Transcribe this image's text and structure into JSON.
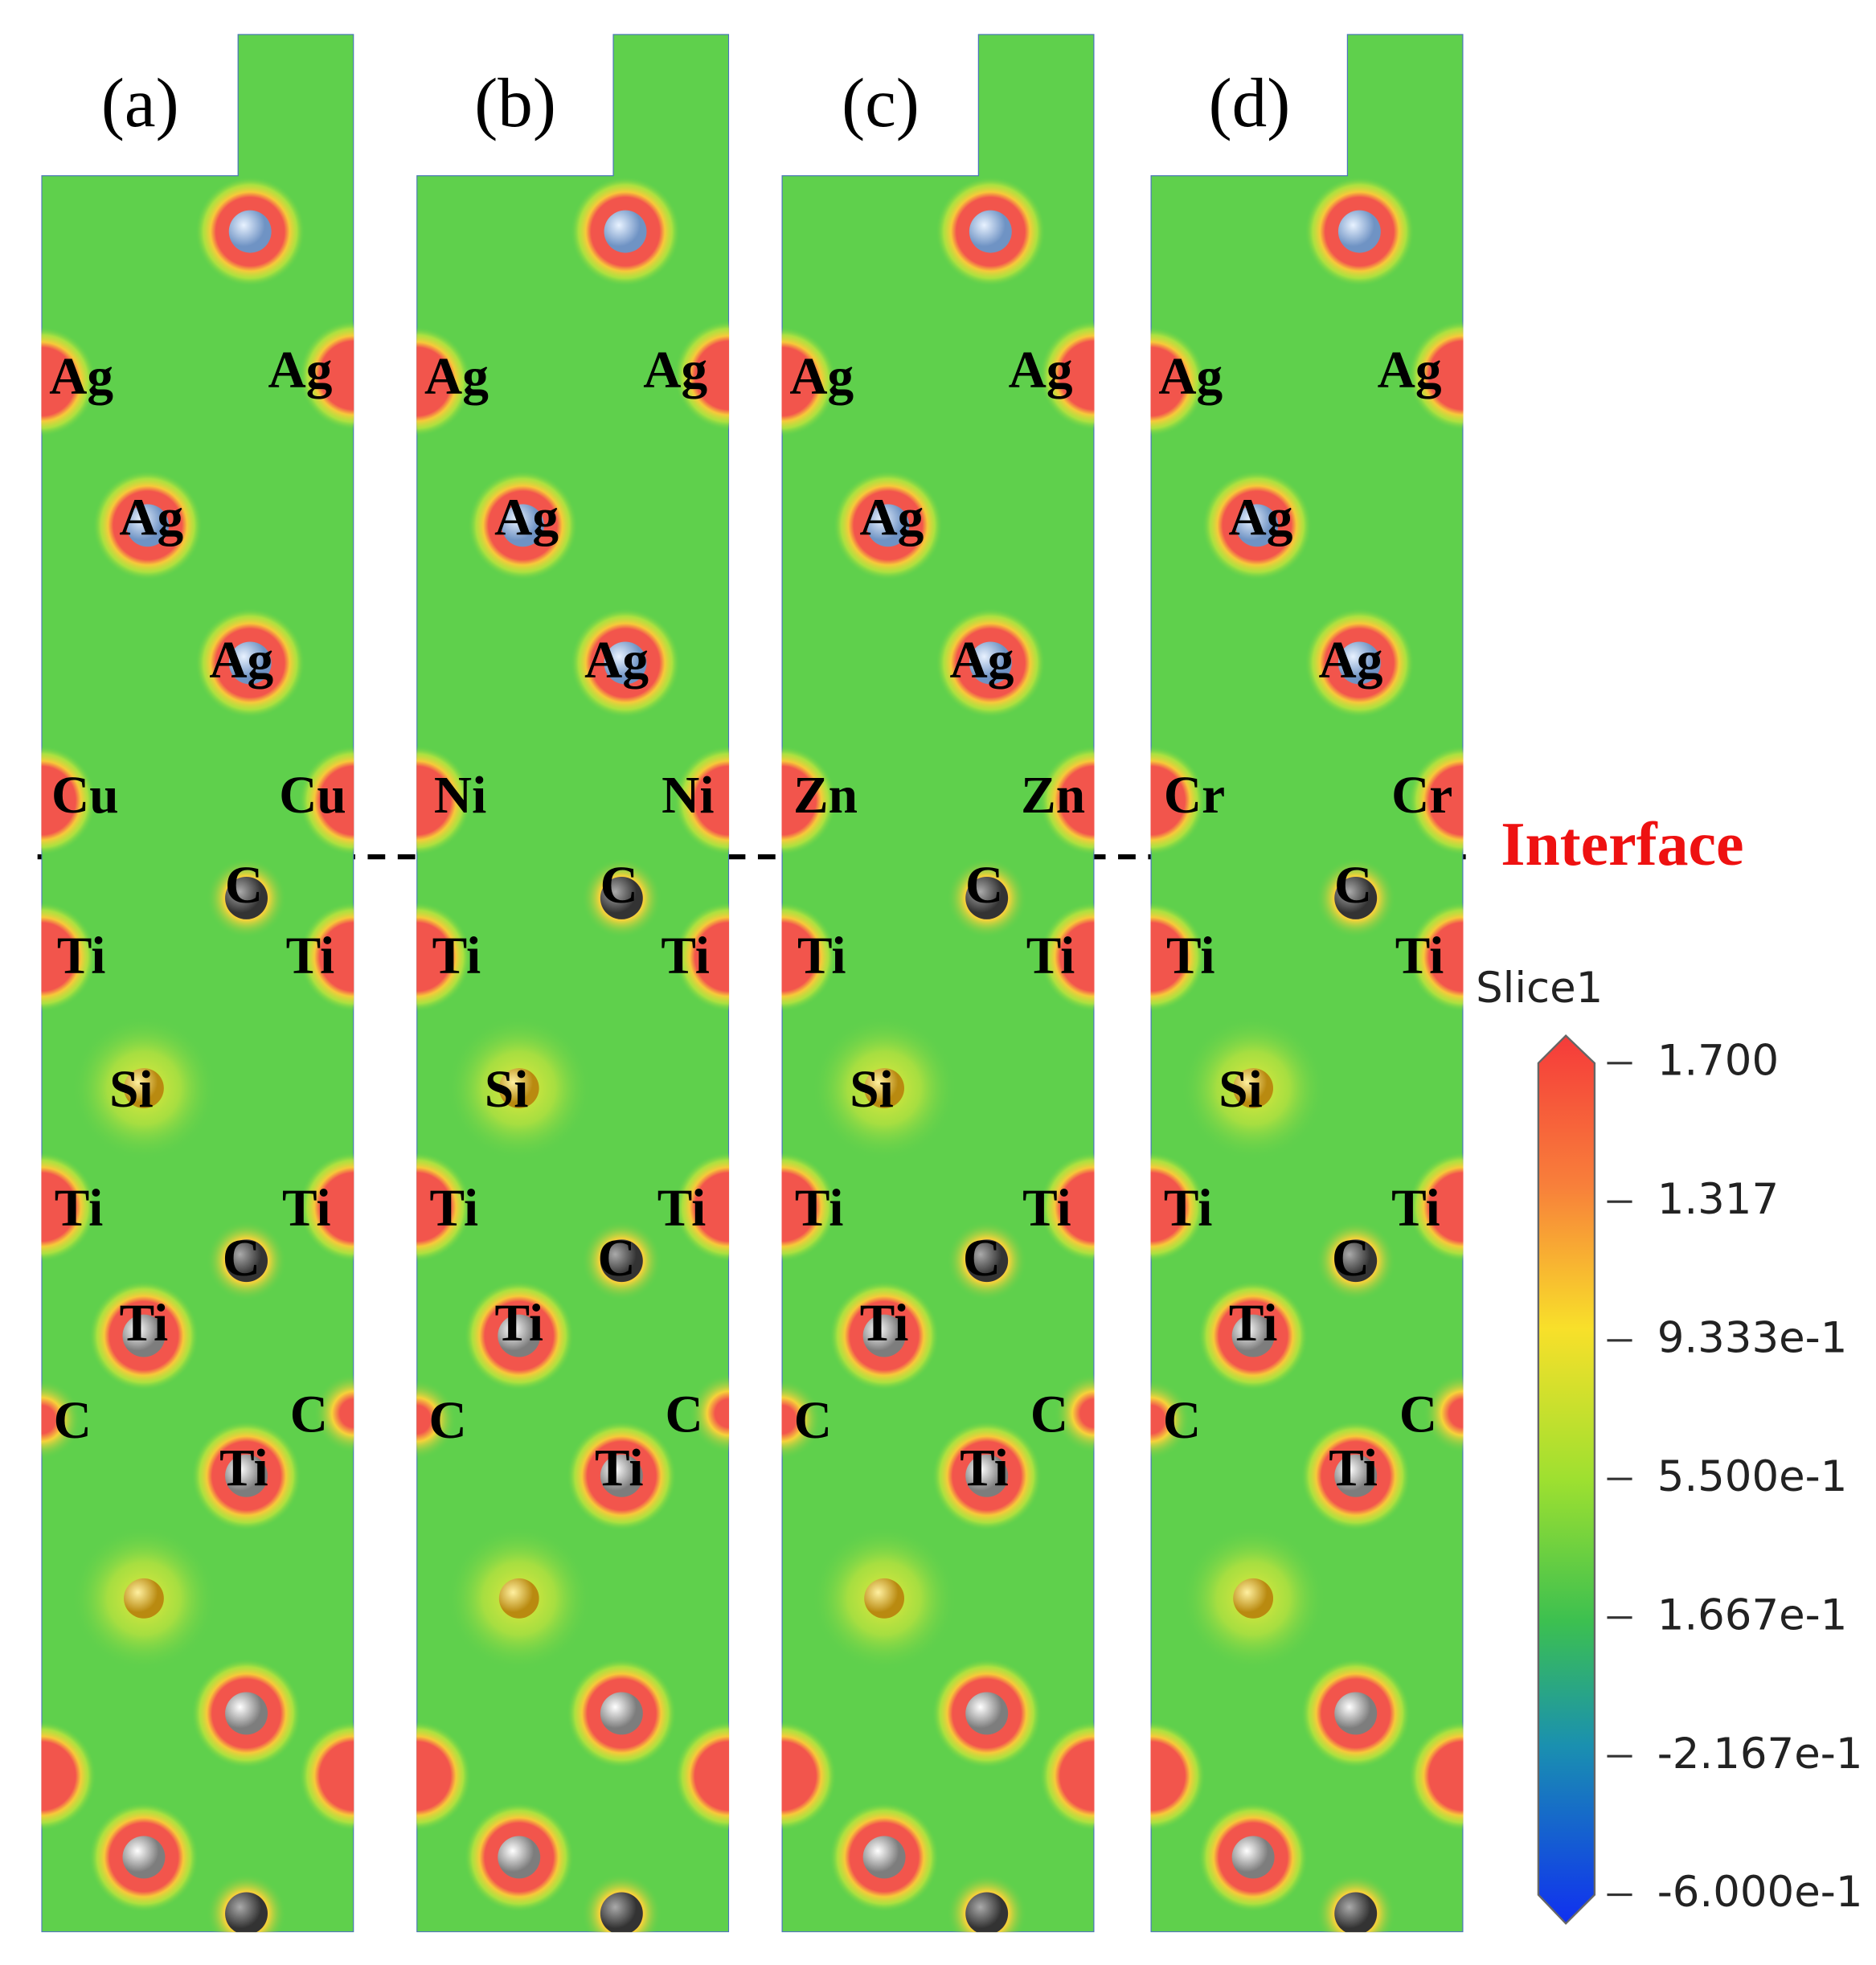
{
  "panels": [
    {
      "label": "(a)",
      "atoms": [
        "Ag",
        "Ag",
        "Ag",
        "Ag",
        "Cu",
        "Cu",
        "C",
        "Ti",
        "Ti",
        "Si",
        "Ti",
        "Ti",
        "C",
        "Ti",
        "C",
        "C",
        "Ti"
      ]
    },
    {
      "label": "(b)",
      "atoms": [
        "Ag",
        "Ag",
        "Ag",
        "Ag",
        "Ni",
        "Ni",
        "C",
        "Ti",
        "Ti",
        "Si",
        "Ti",
        "Ti",
        "C",
        "Ti",
        "C",
        "C",
        "Ti"
      ]
    },
    {
      "label": "(c)",
      "atoms": [
        "Ag",
        "Ag",
        "Ag",
        "Ag",
        "Zn",
        "Zn",
        "C",
        "Ti",
        "Ti",
        "Si",
        "Ti",
        "Ti",
        "C",
        "Ti",
        "C",
        "C",
        "Ti"
      ]
    },
    {
      "label": "(d)",
      "atoms": [
        "Ag",
        "Ag",
        "Ag",
        "Ag",
        "Cr",
        "Cr",
        "C",
        "Ti",
        "Ti",
        "Si",
        "Ti",
        "Ti",
        "C",
        "Ti",
        "C",
        "C",
        "Ti"
      ]
    }
  ],
  "interface_label": "Interface",
  "colorbar": {
    "title": "Slice1",
    "range": [
      -0.6,
      1.7
    ],
    "ticks": [
      {
        "value": 1.7,
        "label": "1.700"
      },
      {
        "value": 1.317,
        "label": "1.317"
      },
      {
        "value": 0.9333,
        "label": "9.333e-1"
      },
      {
        "value": 0.55,
        "label": "5.500e-1"
      },
      {
        "value": 0.1667,
        "label": "1.667e-1"
      },
      {
        "value": -0.2167,
        "label": "-2.167e-1"
      },
      {
        "value": -0.6,
        "label": "-6.000e-1"
      }
    ]
  }
}
